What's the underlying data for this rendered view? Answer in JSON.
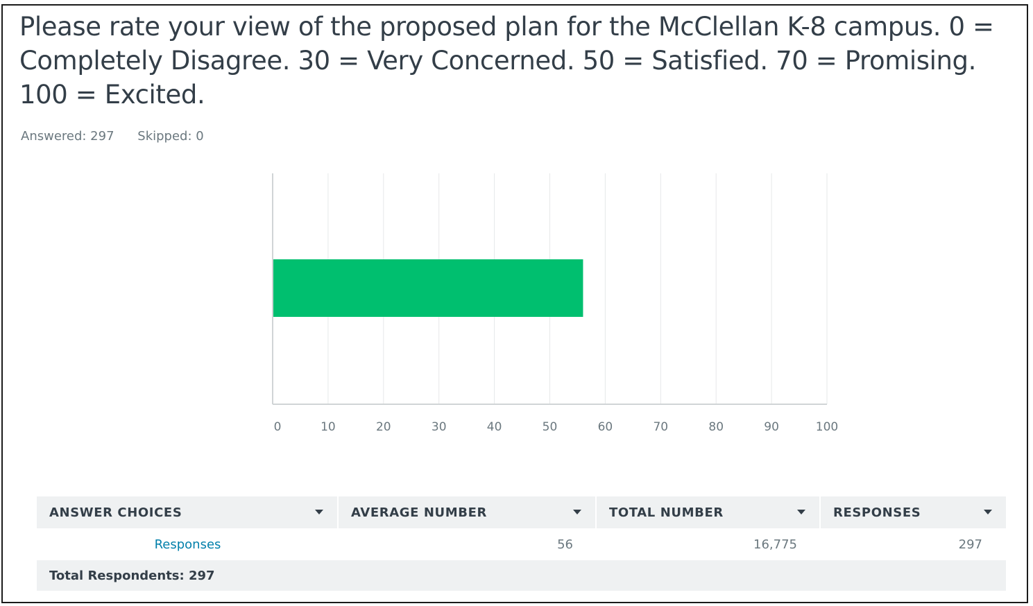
{
  "question": {
    "title": "Please rate your view of the proposed plan for the McClellan K-8 campus.  0 = Completely Disagree. 30 = Very Concerned. 50 = Satisfied. 70 = Promising. 100 = Excited.",
    "answered": "Answered: 297",
    "skipped": "Skipped: 0"
  },
  "chart_data": {
    "type": "bar",
    "orientation": "horizontal",
    "categories": [
      "Responses"
    ],
    "values": [
      56
    ],
    "title": "",
    "xlabel": "",
    "ylabel": "",
    "xlim": [
      0,
      100
    ],
    "x_ticks": [
      "0",
      "10",
      "20",
      "30",
      "40",
      "50",
      "60",
      "70",
      "80",
      "90",
      "100"
    ],
    "grid": true,
    "legend": "none",
    "bar_color": "#00bf6f"
  },
  "table": {
    "headers": [
      "ANSWER CHOICES",
      "AVERAGE NUMBER",
      "TOTAL NUMBER",
      "RESPONSES"
    ],
    "rows": [
      {
        "choice": "Responses",
        "average": "56",
        "total": "16,775",
        "responses": "297"
      }
    ],
    "footer": "Total Respondents: 297"
  },
  "colors": {
    "accent": "#00bf6f",
    "link": "#007faa",
    "header_bg": "#eff1f2",
    "text": "#333e48",
    "muted": "#6b787f"
  }
}
